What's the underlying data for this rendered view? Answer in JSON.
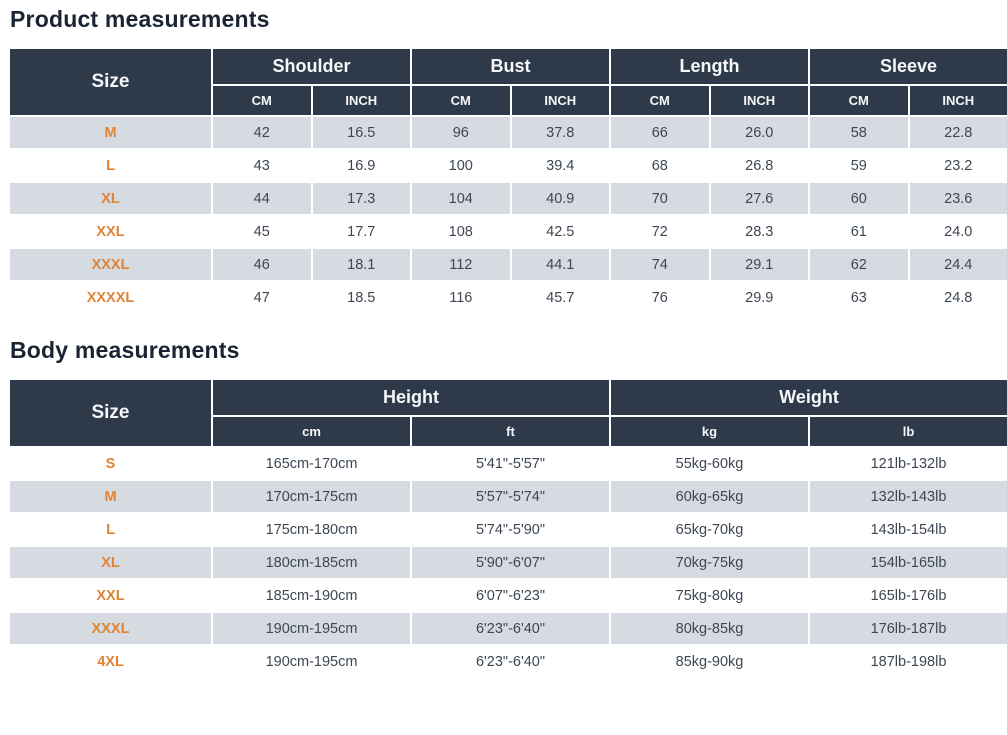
{
  "colors": {
    "header_bg": "#2e3a49",
    "header_text": "#f5f7fa",
    "accent_orange": "#e08434",
    "stripe_row": "#d6dae1",
    "data_text": "#3d4754",
    "title_text": "#1b2433"
  },
  "product_table": {
    "title": "Product measurements",
    "size_header": "Size",
    "groups": [
      {
        "label": "Shoulder",
        "units": [
          "CM",
          "INCH"
        ]
      },
      {
        "label": "Bust",
        "units": [
          "CM",
          "INCH"
        ]
      },
      {
        "label": "Length",
        "units": [
          "CM",
          "INCH"
        ]
      },
      {
        "label": "Sleeve",
        "units": [
          "CM",
          "INCH"
        ]
      }
    ],
    "rows": [
      {
        "size": "M",
        "values": [
          "42",
          "16.5",
          "96",
          "37.8",
          "66",
          "26.0",
          "58",
          "22.8"
        ]
      },
      {
        "size": "L",
        "values": [
          "43",
          "16.9",
          "100",
          "39.4",
          "68",
          "26.8",
          "59",
          "23.2"
        ]
      },
      {
        "size": "XL",
        "values": [
          "44",
          "17.3",
          "104",
          "40.9",
          "70",
          "27.6",
          "60",
          "23.6"
        ]
      },
      {
        "size": "XXL",
        "values": [
          "45",
          "17.7",
          "108",
          "42.5",
          "72",
          "28.3",
          "61",
          "24.0"
        ]
      },
      {
        "size": "XXXL",
        "values": [
          "46",
          "18.1",
          "112",
          "44.1",
          "74",
          "29.1",
          "62",
          "24.4"
        ]
      },
      {
        "size": "XXXXL",
        "values": [
          "47",
          "18.5",
          "116",
          "45.7",
          "76",
          "29.9",
          "63",
          "24.8"
        ]
      }
    ]
  },
  "body_table": {
    "title": "Body measurements",
    "size_header": "Size",
    "groups": [
      {
        "label": "Height",
        "units": [
          "cm",
          "ft"
        ]
      },
      {
        "label": "Weight",
        "units": [
          "kg",
          "lb"
        ]
      }
    ],
    "rows": [
      {
        "size": "S",
        "values": [
          "165cm-170cm",
          "5'41\"-5'57\"",
          "55kg-60kg",
          "121lb-132lb"
        ]
      },
      {
        "size": "M",
        "values": [
          "170cm-175cm",
          "5'57\"-5'74\"",
          "60kg-65kg",
          "132lb-143lb"
        ]
      },
      {
        "size": "L",
        "values": [
          "175cm-180cm",
          "5'74\"-5'90\"",
          "65kg-70kg",
          "143lb-154lb"
        ]
      },
      {
        "size": "XL",
        "values": [
          "180cm-185cm",
          "5'90\"-6'07\"",
          "70kg-75kg",
          "154lb-165lb"
        ]
      },
      {
        "size": "XXL",
        "values": [
          "185cm-190cm",
          "6'07\"-6'23\"",
          "75kg-80kg",
          "165lb-176lb"
        ]
      },
      {
        "size": "XXXL",
        "values": [
          "190cm-195cm",
          "6'23\"-6'40\"",
          "80kg-85kg",
          "176lb-187lb"
        ]
      },
      {
        "size": "4XL",
        "values": [
          "190cm-195cm",
          "6'23\"-6'40\"",
          "85kg-90kg",
          "187lb-198lb"
        ]
      }
    ]
  }
}
